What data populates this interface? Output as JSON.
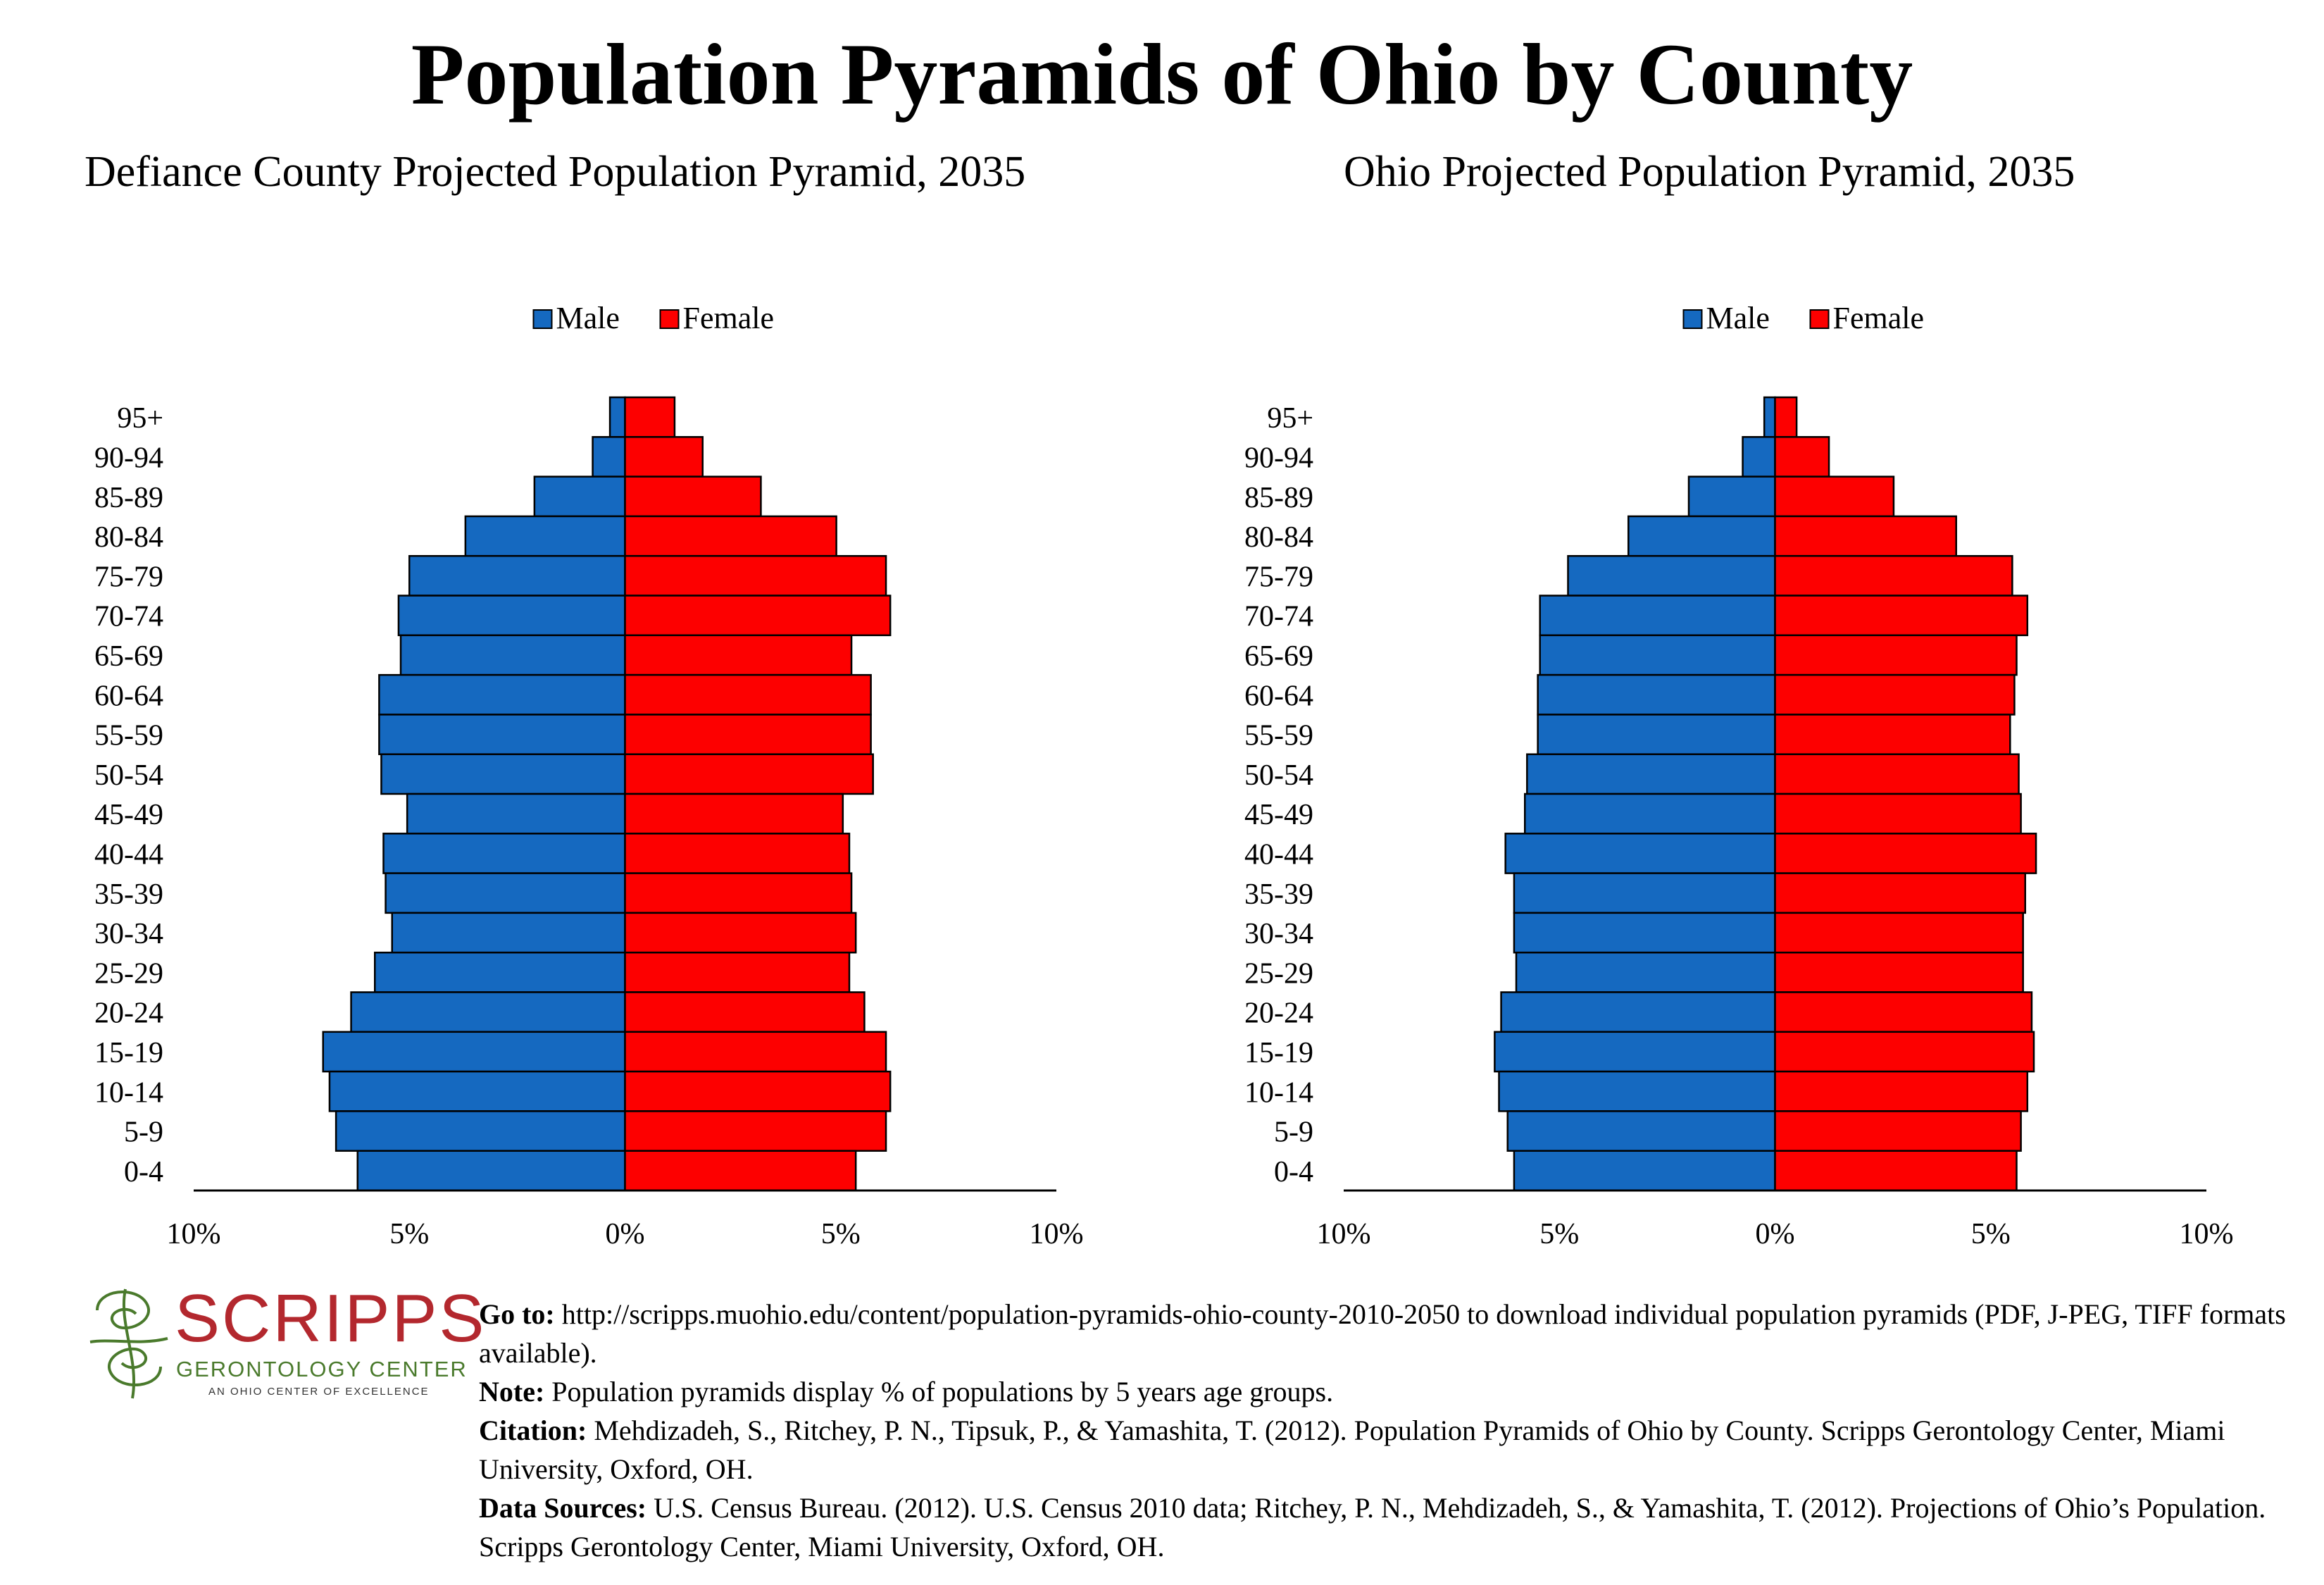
{
  "title": "Population Pyramids of Ohio by County",
  "colors": {
    "male": "#1569c0",
    "female": "#fd0000",
    "logo_red": "#b3282e",
    "logo_green": "#4a7a2c"
  },
  "chart_data": [
    {
      "type": "bar",
      "orientation": "horizontal-pyramid",
      "title": "Defiance County Projected Population Pyramid, 2035",
      "legend": {
        "position": "top-center",
        "entries": [
          "Male",
          "Female"
        ]
      },
      "categories": [
        "95+",
        "90-94",
        "85-89",
        "80-84",
        "75-79",
        "70-74",
        "65-69",
        "60-64",
        "55-59",
        "50-54",
        "45-49",
        "40-44",
        "35-39",
        "30-34",
        "25-29",
        "20-24",
        "15-19",
        "10-14",
        "5-9",
        "0-4"
      ],
      "series": [
        {
          "name": "Male",
          "values": [
            0.35,
            0.75,
            2.1,
            3.7,
            5.0,
            5.25,
            5.2,
            5.7,
            5.7,
            5.65,
            5.05,
            5.6,
            5.55,
            5.4,
            5.8,
            6.35,
            7.0,
            6.85,
            6.7,
            6.2
          ]
        },
        {
          "name": "Female",
          "values": [
            1.15,
            1.8,
            3.15,
            4.9,
            6.05,
            6.15,
            5.25,
            5.7,
            5.7,
            5.75,
            5.05,
            5.2,
            5.25,
            5.35,
            5.2,
            5.55,
            6.05,
            6.15,
            6.05,
            5.35
          ]
        }
      ],
      "xlim": [
        -10,
        10
      ],
      "xticks": [
        "10%",
        "5%",
        "0%",
        "5%",
        "10%"
      ]
    },
    {
      "type": "bar",
      "orientation": "horizontal-pyramid",
      "title": "Ohio Projected Population Pyramid, 2035",
      "legend": {
        "position": "top-center",
        "entries": [
          "Male",
          "Female"
        ]
      },
      "categories": [
        "95+",
        "90-94",
        "85-89",
        "80-84",
        "75-79",
        "70-74",
        "65-69",
        "60-64",
        "55-59",
        "50-54",
        "45-49",
        "40-44",
        "35-39",
        "30-34",
        "25-29",
        "20-24",
        "15-19",
        "10-14",
        "5-9",
        "0-4"
      ],
      "series": [
        {
          "name": "Male",
          "values": [
            0.25,
            0.75,
            2.0,
            3.4,
            4.8,
            5.45,
            5.45,
            5.5,
            5.5,
            5.75,
            5.8,
            6.25,
            6.05,
            6.05,
            6.0,
            6.35,
            6.5,
            6.4,
            6.2,
            6.05
          ]
        },
        {
          "name": "Female",
          "values": [
            0.5,
            1.25,
            2.75,
            4.2,
            5.5,
            5.85,
            5.6,
            5.55,
            5.45,
            5.65,
            5.7,
            6.05,
            5.8,
            5.75,
            5.75,
            5.95,
            6.0,
            5.85,
            5.7,
            5.6
          ]
        }
      ],
      "xlim": [
        -10,
        10
      ],
      "xticks": [
        "10%",
        "5%",
        "0%",
        "5%",
        "10%"
      ]
    }
  ],
  "logo": {
    "wordmark": "SCRIPPS",
    "subtitle": "GERONTOLOGY CENTER",
    "tagline": "AN OHIO CENTER OF EXCELLENCE"
  },
  "notes": [
    {
      "label": "Go to:",
      "text": " http://scripps.muohio.edu/content/population-pyramids-ohio-county-2010-2050 to download individual population pyramids (PDF, J-PEG, TIFF formats available)."
    },
    {
      "label": "Note:",
      "text": " Population pyramids display % of populations by 5 years age groups."
    },
    {
      "label": "Citation:",
      "text": " Mehdizadeh, S., Ritchey, P. N., Tipsuk, P., & Yamashita, T. (2012). Population Pyramids of Ohio by County. Scripps Gerontology Center, Miami University, Oxford, OH."
    },
    {
      "label": "Data Sources:",
      "text": " U.S. Census Bureau. (2012). U.S. Census 2010 data; Ritchey, P. N., Mehdizadeh, S., & Yamashita, T. (2012). Projections of Ohio’s Population. Scripps Gerontology Center, Miami University, Oxford, OH."
    }
  ]
}
